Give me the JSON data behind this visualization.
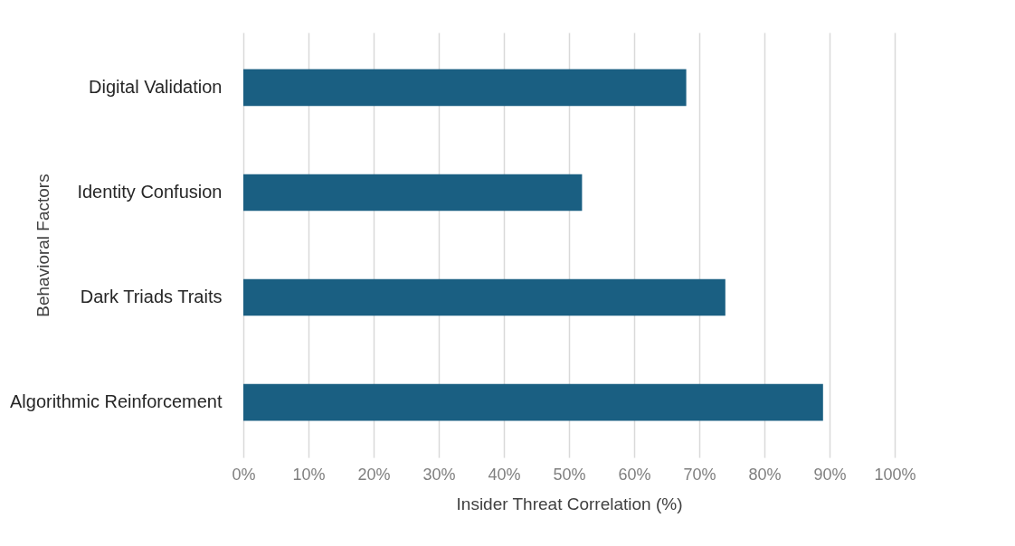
{
  "chart_data": {
    "type": "bar",
    "orientation": "horizontal",
    "xlabel": "Insider Threat Correlation (%)",
    "ylabel": "Behavioral Factors",
    "categories": [
      "Digital Validation",
      "Identity Confusion",
      "Dark Triads Traits",
      "Algorithmic Reinforcement"
    ],
    "values": [
      68,
      52,
      74,
      89
    ],
    "color": "#1a5f82",
    "xlim": [
      0,
      100
    ],
    "xticks": [
      {
        "value": 0,
        "label": "0%"
      },
      {
        "value": 10,
        "label": "10%"
      },
      {
        "value": 20,
        "label": "20%"
      },
      {
        "value": 30,
        "label": "30%"
      },
      {
        "value": 40,
        "label": "40%"
      },
      {
        "value": 50,
        "label": "50%"
      },
      {
        "value": 60,
        "label": "60%"
      },
      {
        "value": 70,
        "label": "70%"
      },
      {
        "value": 80,
        "label": "80%"
      },
      {
        "value": 90,
        "label": "90%"
      },
      {
        "value": 100,
        "label": "100%"
      }
    ],
    "grid": "x"
  }
}
